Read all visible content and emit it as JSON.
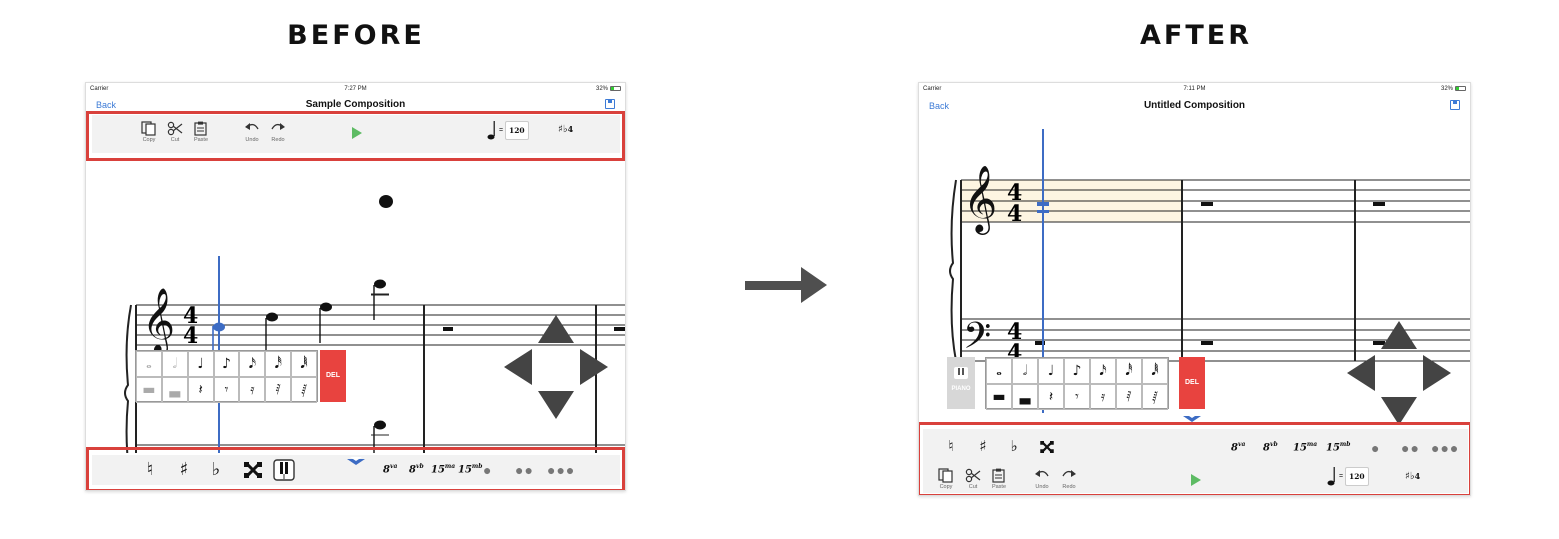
{
  "headings": {
    "before": "BEFORE",
    "after": "AFTER"
  },
  "before": {
    "status": {
      "carrier": "Carrier",
      "time": "7:27 PM",
      "battery": "32%"
    },
    "nav": {
      "back": "Back",
      "title": "Sample Composition"
    },
    "toolbar": {
      "copy": "Copy",
      "cut": "Cut",
      "paste": "Paste",
      "undo": "Undo",
      "redo": "Redo",
      "tempo_value": "120"
    },
    "del_label": "DEL"
  },
  "after": {
    "status": {
      "carrier": "Carrier",
      "time": "7:11 PM",
      "battery": "32%"
    },
    "nav": {
      "back": "Back",
      "title": "Untitled Composition"
    },
    "toolbar": {
      "copy": "Copy",
      "cut": "Cut",
      "paste": "Paste",
      "undo": "Undo",
      "redo": "Redo",
      "tempo_value": "120"
    },
    "del_label": "DEL",
    "piano_label": "PIANO"
  },
  "ottava": {
    "va8": "va",
    "vb8": "vb",
    "ma15": "ma",
    "mb15": "mb"
  },
  "colors": {
    "highlight_red": "#d9413c",
    "accent_blue": "#3d7bd6",
    "play_green": "#5dbb63",
    "del_red": "#e8433f",
    "cursor_blue": "#3d6cc4"
  },
  "icons": [
    "copy-icon",
    "cut-icon",
    "paste-icon",
    "undo-icon",
    "redo-icon",
    "play-icon",
    "quarter-note-icon",
    "key-signature-icon",
    "natural-icon",
    "sharp-icon",
    "flat-icon",
    "double-sharp-icon",
    "piano-keys-icon",
    "chevron-down-icon",
    "save-icon",
    "arrow-right-icon",
    "dpad-arrows-icon"
  ]
}
